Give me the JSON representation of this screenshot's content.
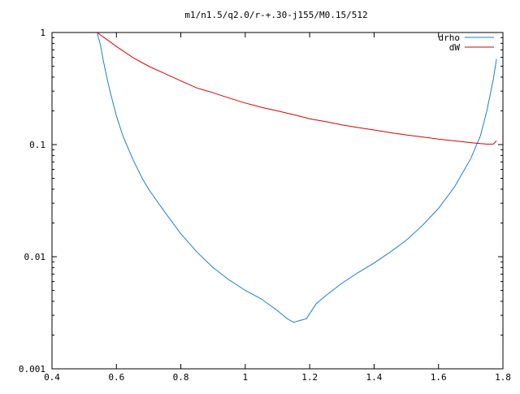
{
  "chart_data": {
    "type": "line",
    "title": "m1/n1.5/q2.0/r-+.30-j155/M0.15/512",
    "xlabel": "",
    "ylabel": "",
    "xlim": [
      0.4,
      1.8
    ],
    "ylim": [
      0.001,
      1
    ],
    "y_scale": "log",
    "grid": false,
    "legend_position": "top-right",
    "x_ticks": [
      "0.4",
      "0.6",
      "0.8",
      "1",
      "1.2",
      "1.4",
      "1.6",
      "1.8"
    ],
    "x_tick_values": [
      0.4,
      0.6,
      0.8,
      1.0,
      1.2,
      1.4,
      1.6,
      1.8
    ],
    "y_ticks": [
      "0.001",
      "0.01",
      "0.1",
      "1"
    ],
    "y_tick_values": [
      0.001,
      0.01,
      0.1,
      1
    ],
    "series": [
      {
        "name": "drho",
        "color": "#1a7fd4",
        "x": [
          0.54,
          0.55,
          0.56,
          0.57,
          0.58,
          0.6,
          0.62,
          0.65,
          0.68,
          0.7,
          0.75,
          0.8,
          0.85,
          0.9,
          0.95,
          1.0,
          1.05,
          1.1,
          1.13,
          1.15,
          1.17,
          1.19,
          1.2,
          1.22,
          1.25,
          1.3,
          1.35,
          1.4,
          1.45,
          1.5,
          1.55,
          1.6,
          1.65,
          1.7,
          1.73,
          1.75,
          1.77,
          1.78
        ],
        "y": [
          1.0,
          0.78,
          0.55,
          0.4,
          0.3,
          0.18,
          0.12,
          0.075,
          0.05,
          0.04,
          0.025,
          0.016,
          0.011,
          0.008,
          0.0062,
          0.005,
          0.0042,
          0.0033,
          0.0028,
          0.0026,
          0.0027,
          0.0028,
          0.0031,
          0.0038,
          0.0045,
          0.0058,
          0.0072,
          0.0088,
          0.011,
          0.014,
          0.019,
          0.027,
          0.042,
          0.075,
          0.12,
          0.2,
          0.38,
          0.58
        ]
      },
      {
        "name": "dW",
        "color": "#dd0000",
        "x": [
          0.54,
          0.6,
          0.65,
          0.7,
          0.75,
          0.8,
          0.85,
          0.9,
          0.95,
          1.0,
          1.05,
          1.1,
          1.15,
          1.2,
          1.25,
          1.3,
          1.35,
          1.4,
          1.45,
          1.5,
          1.55,
          1.6,
          1.65,
          1.7,
          1.73,
          1.75,
          1.77,
          1.78
        ],
        "y": [
          1.0,
          0.75,
          0.6,
          0.5,
          0.43,
          0.37,
          0.32,
          0.29,
          0.26,
          0.235,
          0.215,
          0.2,
          0.185,
          0.17,
          0.16,
          0.15,
          0.142,
          0.135,
          0.128,
          0.122,
          0.117,
          0.112,
          0.108,
          0.104,
          0.102,
          0.101,
          0.101,
          0.108
        ]
      }
    ]
  }
}
